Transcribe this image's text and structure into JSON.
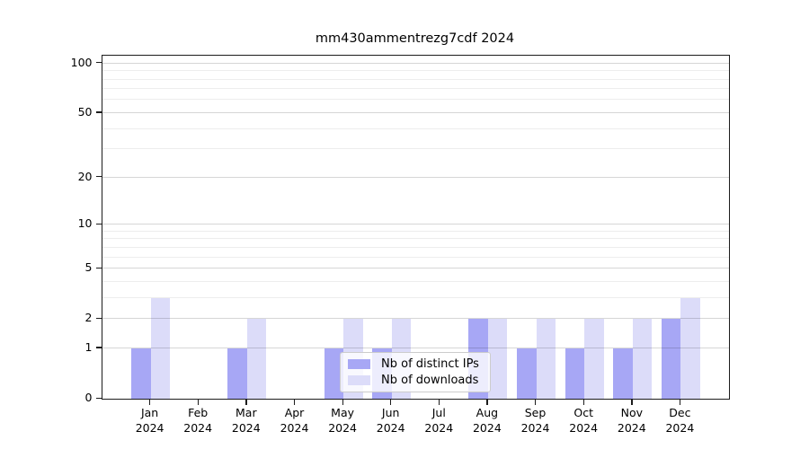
{
  "chart_data": {
    "type": "bar",
    "title": "mm430ammentrezg7cdf 2024",
    "y_scale": "log1p",
    "categories": [
      "Jan",
      "Feb",
      "Mar",
      "Apr",
      "May",
      "Jun",
      "Jul",
      "Aug",
      "Sep",
      "Oct",
      "Nov",
      "Dec"
    ],
    "category_year": "2024",
    "series": [
      {
        "name": "Nb of distinct IPs",
        "color": "#a7a7f5",
        "values": [
          1,
          0,
          1,
          0,
          1,
          1,
          0,
          2,
          1,
          1,
          1,
          2
        ]
      },
      {
        "name": "Nb of downloads",
        "color": "#dcdcf9",
        "values": [
          3,
          0,
          2,
          0,
          2,
          2,
          0,
          2,
          2,
          2,
          2,
          3
        ]
      }
    ],
    "y_ticks": [
      0,
      1,
      2,
      5,
      10,
      20,
      50,
      100
    ],
    "y_minor_ticks": [
      3,
      4,
      6,
      7,
      8,
      9,
      30,
      40,
      60,
      70,
      80,
      90
    ],
    "ylim": [
      0,
      111.4
    ],
    "grid": true,
    "grid_major_color": "rgba(0,0,0,0.16)",
    "grid_minor_color": "rgba(0,0,0,0.07)",
    "axis_color": "#1c1c1c",
    "legend_position": "lower-center"
  }
}
